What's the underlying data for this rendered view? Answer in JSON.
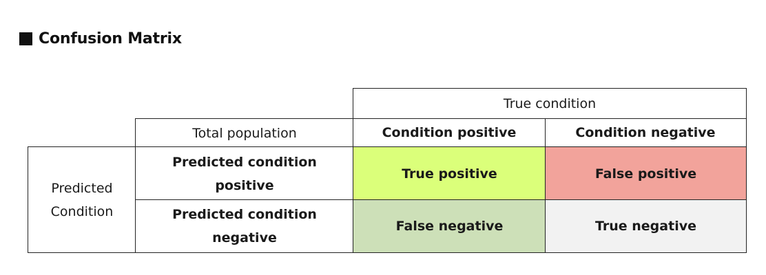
{
  "title": "Confusion Matrix",
  "icons": {
    "title_marker": "black-square-icon"
  },
  "matrix": {
    "true_condition_header": "True condition",
    "total_population": "Total population",
    "condition_positive": "Condition positive",
    "condition_negative": "Condition negative",
    "predicted_condition_line1": "Predicted",
    "predicted_condition_line2": "Condition",
    "predicted_positive_line1": "Predicted condition",
    "predicted_positive_line2": "positive",
    "predicted_negative_line1": "Predicted condition",
    "predicted_negative_line2": "negative",
    "true_positive": "True positive",
    "false_positive": "False positive",
    "false_negative": "False negative",
    "true_negative": "True negative"
  },
  "colors": {
    "true_positive": "#dbff7a",
    "false_positive": "#f2a39b",
    "false_negative": "#cde0b8",
    "true_negative": "#f2f2f2"
  }
}
